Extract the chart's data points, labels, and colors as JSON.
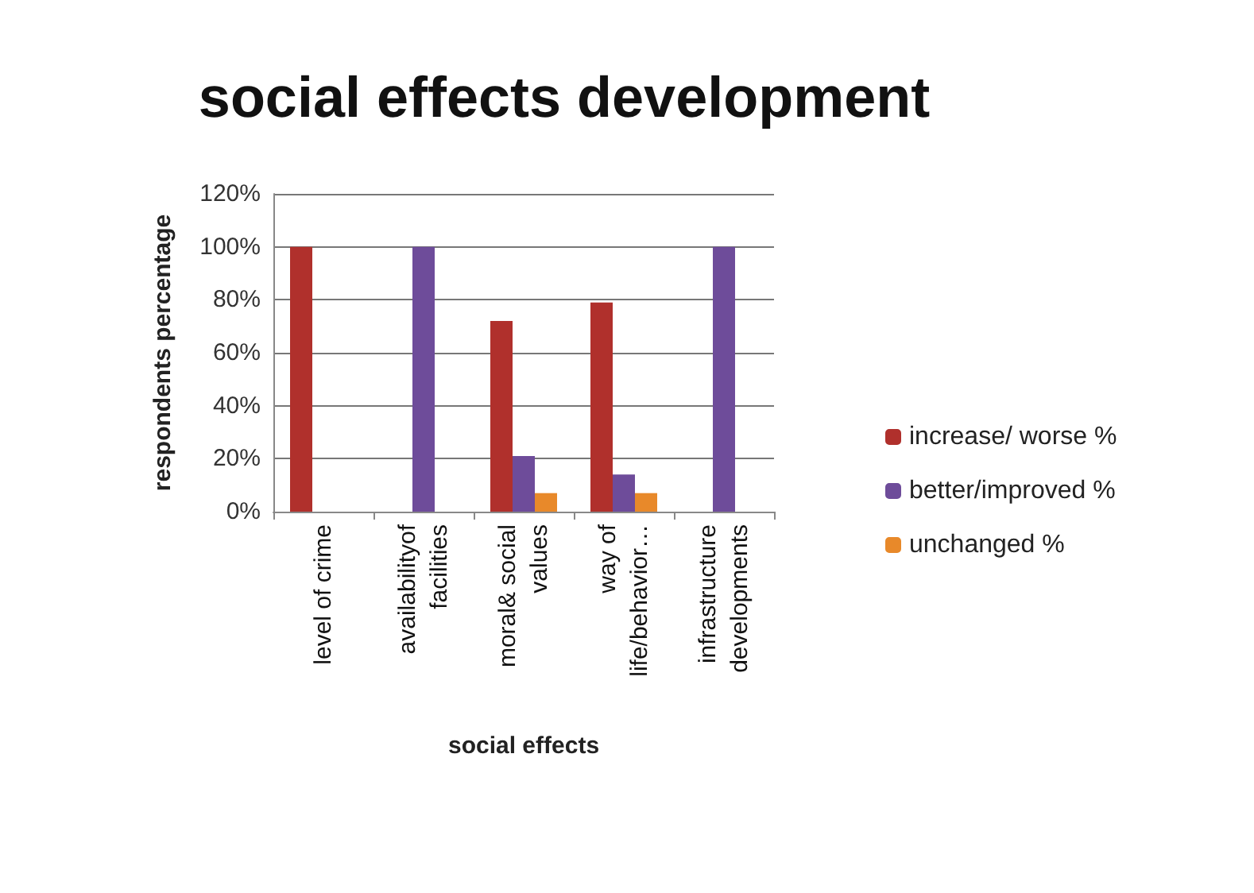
{
  "chart_data": {
    "type": "bar",
    "title": "social effects development",
    "xlabel": "social effects",
    "ylabel": "respondents percentage",
    "categories": [
      "level of crime",
      "availabilityof\nfacilities",
      "moral& social\nvalues",
      "way of\nlife/behavior…",
      "infrastructure\ndevelopments"
    ],
    "series": [
      {
        "name": "increase/ worse %",
        "color": "#b0302c",
        "values": [
          100,
          null,
          72,
          79,
          null
        ]
      },
      {
        "name": "better/improved %",
        "color": "#6e4c9a",
        "values": [
          null,
          100,
          21,
          14,
          100
        ]
      },
      {
        "name": "unchanged %",
        "color": "#e8892a",
        "values": [
          null,
          null,
          7,
          7,
          null
        ]
      }
    ],
    "ylim": [
      0,
      120
    ],
    "yticks": [
      {
        "value": 0,
        "label": "0%"
      },
      {
        "value": 20,
        "label": "20%"
      },
      {
        "value": 40,
        "label": "40%"
      },
      {
        "value": 60,
        "label": "60%"
      },
      {
        "value": 80,
        "label": "80%"
      },
      {
        "value": 100,
        "label": "100%"
      },
      {
        "value": 120,
        "label": "120%"
      }
    ],
    "grid": "y",
    "legend": "right"
  }
}
